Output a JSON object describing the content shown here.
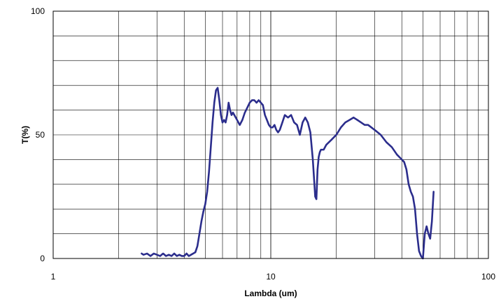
{
  "chart_data": {
    "type": "line",
    "title": "",
    "xlabel": "Lambda (um)",
    "ylabel": "T(%)",
    "x_scale": "log",
    "xlim": [
      1,
      100
    ],
    "ylim": [
      0,
      100
    ],
    "x_ticks": [
      {
        "value": 1,
        "label": "1"
      },
      {
        "value": 10,
        "label": "10"
      },
      {
        "value": 100,
        "label": "100"
      }
    ],
    "y_ticks": [
      {
        "value": 0,
        "label": "0"
      },
      {
        "value": 50,
        "label": "50"
      },
      {
        "value": 100,
        "label": "100"
      }
    ],
    "grid": true,
    "legend": "none",
    "line_color": "#2b2d8c",
    "series": [
      {
        "x": [
          2.55,
          2.6,
          2.7,
          2.8,
          2.9,
          3.0,
          3.1,
          3.2,
          3.3,
          3.4,
          3.5,
          3.6,
          3.7,
          3.8,
          3.9,
          4.0,
          4.1,
          4.2,
          4.3,
          4.4,
          4.5,
          4.6,
          4.7,
          4.8,
          4.9,
          5.0,
          5.1,
          5.2,
          5.3,
          5.4,
          5.5,
          5.6,
          5.7,
          5.8,
          5.9,
          6.0,
          6.1,
          6.2,
          6.3,
          6.4,
          6.5,
          6.6,
          6.7,
          6.8,
          6.9,
          7.0,
          7.2,
          7.4,
          7.6,
          7.8,
          8.0,
          8.2,
          8.4,
          8.6,
          8.8,
          9.0,
          9.2,
          9.4,
          9.6,
          9.8,
          10.0,
          10.2,
          10.4,
          10.6,
          10.8,
          11.0,
          11.3,
          11.6,
          12.0,
          12.4,
          12.8,
          13.2,
          13.6,
          14.0,
          14.4,
          14.8,
          15.2,
          15.6,
          16.0,
          16.2,
          16.4,
          16.6,
          16.8,
          17.0,
          17.5,
          18.0,
          19.0,
          20.0,
          21.0,
          22.0,
          23.0,
          24.0,
          25.0,
          26.0,
          27.0,
          28.0,
          30.0,
          32.0,
          34.0,
          36.0,
          38.0,
          40.0,
          41.0,
          42.0,
          43.0,
          44.0,
          45.0,
          46.0,
          47.0,
          48.0,
          49.0,
          50.0,
          51.0,
          52.0,
          53.0,
          54.0,
          55.0,
          56.0
        ],
        "y": [
          2,
          1.5,
          2,
          1,
          2,
          1.5,
          1,
          2,
          1,
          1.5,
          1,
          2,
          1,
          1.5,
          1,
          1,
          2,
          1,
          1.5,
          2,
          2.5,
          5,
          10,
          15,
          19,
          22,
          27,
          35,
          45,
          55,
          63,
          68,
          69,
          64,
          58,
          55,
          56,
          55,
          58,
          63,
          60,
          58,
          59,
          58,
          57,
          56,
          54,
          56,
          59,
          61,
          63,
          64,
          64,
          63,
          64,
          63,
          62,
          58,
          56,
          54,
          53,
          53,
          54,
          52,
          51,
          52,
          55,
          58,
          57,
          58,
          55,
          54,
          50,
          55,
          57,
          55,
          51,
          40,
          25,
          24,
          36,
          41,
          43,
          44,
          44,
          46,
          48,
          50,
          53,
          55,
          56,
          57,
          56,
          55,
          54,
          54,
          52,
          50,
          47,
          45,
          42,
          40,
          39,
          36,
          30,
          27,
          25,
          20,
          10,
          3,
          1,
          0,
          10,
          13,
          10,
          8,
          15,
          27
        ]
      }
    ]
  }
}
